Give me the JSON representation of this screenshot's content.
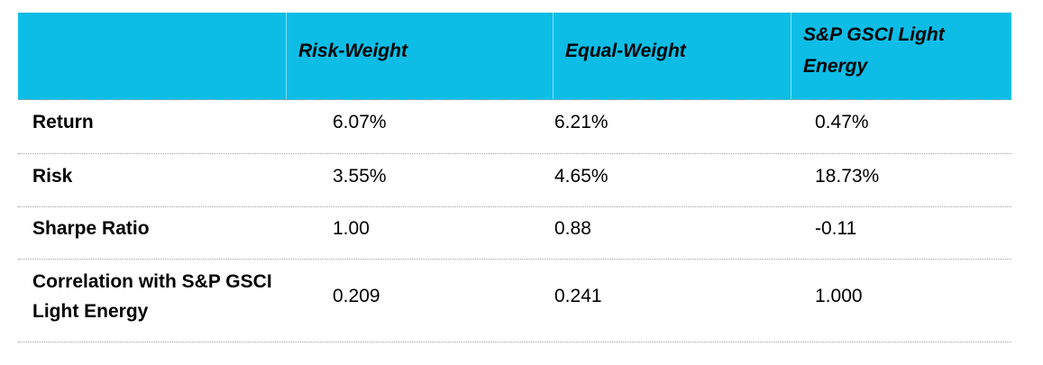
{
  "theme": {
    "header_bg": "#0dbde6",
    "header_text": "#000000",
    "body_text": "#000000",
    "divider_dotted": "#9f9f9f"
  },
  "table": {
    "header": [
      "",
      "Risk-Weight",
      "Equal-Weight",
      "S&P GSCI Light Energy"
    ],
    "rows": [
      {
        "label": "Return",
        "values": [
          "6.07%",
          "6.21%",
          "0.47%"
        ]
      },
      {
        "label": "Risk",
        "values": [
          "3.55%",
          "4.65%",
          "18.73%"
        ]
      },
      {
        "label": "Sharpe Ratio",
        "values": [
          "1.00",
          "0.88",
          "-0.11"
        ]
      },
      {
        "label": "Correlation with S&P GSCI Light Energy",
        "values": [
          "0.209",
          "0.241",
          "1.000"
        ]
      }
    ]
  },
  "chart_data": {
    "type": "table",
    "title": "",
    "columns": [
      "",
      "Risk-Weight",
      "Equal-Weight",
      "S&P GSCI Light Energy"
    ],
    "rows": [
      [
        "Return",
        "6.07%",
        "6.21%",
        "0.47%"
      ],
      [
        "Risk",
        "3.55%",
        "4.65%",
        "18.73%"
      ],
      [
        "Sharpe Ratio",
        "1.00",
        "0.88",
        "-0.11"
      ],
      [
        "Correlation with S&P GSCI Light Energy",
        "0.209",
        "0.241",
        "1.000"
      ]
    ]
  }
}
